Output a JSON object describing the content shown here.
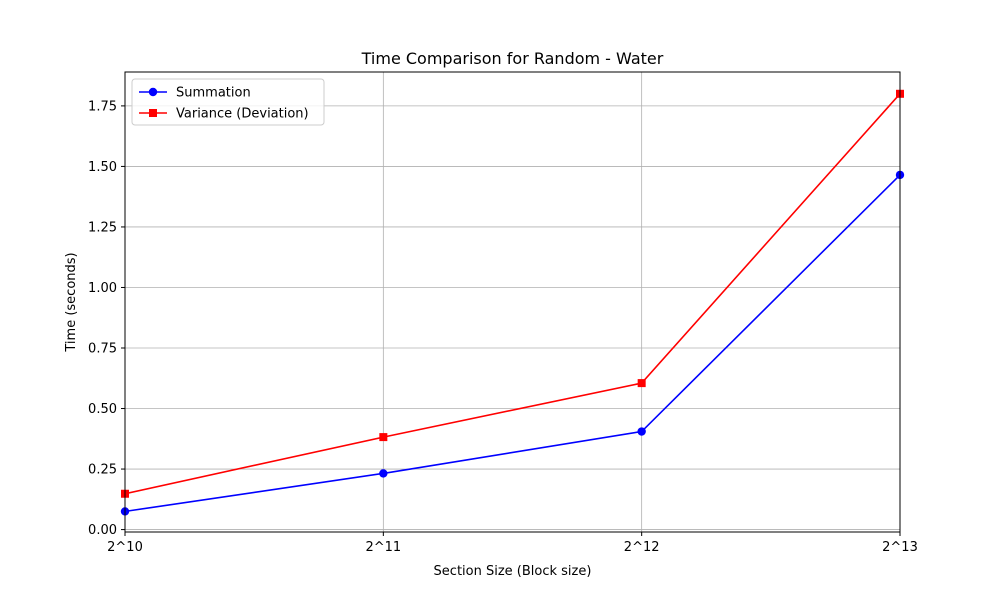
{
  "chart_data": {
    "type": "line",
    "title": "Time Comparison for Random - Water",
    "xlabel": "Section Size (Block size)",
    "ylabel": "Time (seconds)",
    "x": [
      1024,
      2048,
      4096,
      8192
    ],
    "x_tick_labels": [
      "2^10",
      "2^11",
      "2^12",
      "2^13"
    ],
    "xlim": [
      1024,
      8192
    ],
    "ylim": [
      -0.01,
      1.89
    ],
    "y_ticks": [
      0.0,
      0.25,
      0.5,
      0.75,
      1.0,
      1.25,
      1.5,
      1.75
    ],
    "y_tick_labels": [
      "0.00",
      "0.25",
      "0.50",
      "0.75",
      "1.00",
      "1.25",
      "1.50",
      "1.75"
    ],
    "grid": true,
    "legend_position": "top-left",
    "series": [
      {
        "name": "Summation",
        "values": [
          0.075,
          0.232,
          0.405,
          1.465
        ],
        "color": "#0000ff",
        "marker": "circle"
      },
      {
        "name": "Variance (Deviation)",
        "values": [
          0.148,
          0.382,
          0.605,
          1.8
        ],
        "color": "#ff0000",
        "marker": "square"
      }
    ]
  }
}
